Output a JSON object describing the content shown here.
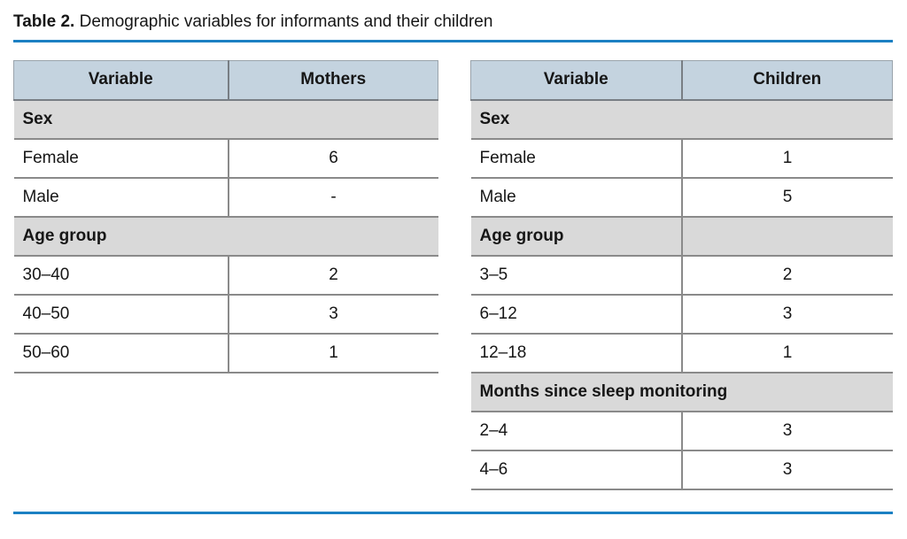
{
  "caption": {
    "label": "Table 2.",
    "text": "Demographic variables for informants and their children"
  },
  "colors": {
    "accent_line": "#1c80c3",
    "header_bg": "#c4d3df",
    "section_bg": "#d9d9d9",
    "border": "#8a8a8a",
    "text": "#161616"
  },
  "tables": [
    {
      "id": "mothers",
      "columns": [
        "Variable",
        "Mothers"
      ],
      "sections": [
        {
          "label": "Sex",
          "rows": [
            [
              "Female",
              "6"
            ],
            [
              "Male",
              "-"
            ]
          ]
        },
        {
          "label": "Age group",
          "rows": [
            [
              "30–40",
              "2"
            ],
            [
              "40–50",
              "3"
            ],
            [
              "50–60",
              "1"
            ]
          ]
        }
      ]
    },
    {
      "id": "children",
      "columns": [
        "Variable",
        "Children"
      ],
      "sections": [
        {
          "label": "Sex",
          "rows": [
            [
              "Female",
              "1"
            ],
            [
              "Male",
              "5"
            ]
          ]
        },
        {
          "label": "Age group",
          "rows": [
            [
              "3–5",
              "2"
            ],
            [
              "6–12",
              "3"
            ],
            [
              "12–18",
              "1"
            ]
          ]
        },
        {
          "label": "Months since sleep monitoring",
          "rows": [
            [
              "2–4",
              "3"
            ],
            [
              "4–6",
              "3"
            ]
          ]
        }
      ]
    }
  ]
}
